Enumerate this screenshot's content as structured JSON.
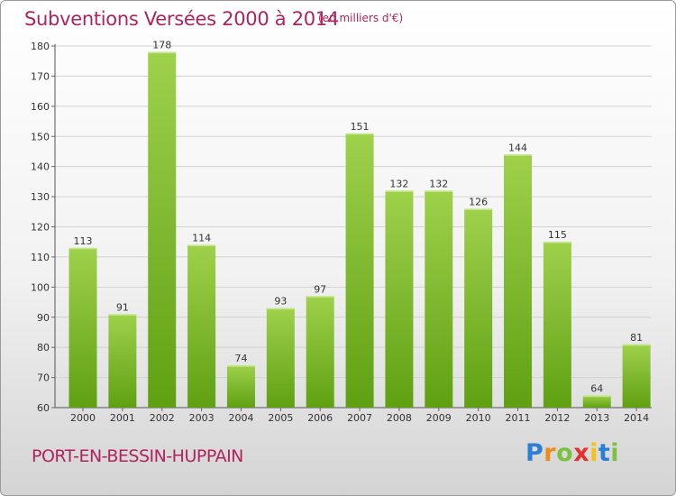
{
  "header": {
    "title": "Subventions Versées 2000 à 2014",
    "unit": "(en milliers d'€)"
  },
  "footer": {
    "town": "PORT-EN-BESSIN-HUPPAIN",
    "logo": "Proxiti"
  },
  "colors": {
    "title": "#b0245e",
    "bar_top": "#9fd14b",
    "bar_bottom": "#5fa012"
  },
  "chart_data": {
    "type": "bar",
    "title": "Subventions Versées 2000 à 2014",
    "subtitle": "(en milliers d'€)",
    "xlabel": "",
    "ylabel": "",
    "categories": [
      "2000",
      "2001",
      "2002",
      "2003",
      "2004",
      "2005",
      "2006",
      "2007",
      "2008",
      "2009",
      "2010",
      "2011",
      "2012",
      "2013",
      "2014"
    ],
    "values": [
      113,
      91,
      178,
      114,
      74,
      93,
      97,
      151,
      132,
      132,
      126,
      144,
      115,
      64,
      81
    ],
    "ylim": [
      60,
      180
    ],
    "yticks": [
      60,
      70,
      80,
      90,
      100,
      110,
      120,
      130,
      140,
      150,
      160,
      170,
      180
    ],
    "grid": true,
    "legend": "none"
  }
}
